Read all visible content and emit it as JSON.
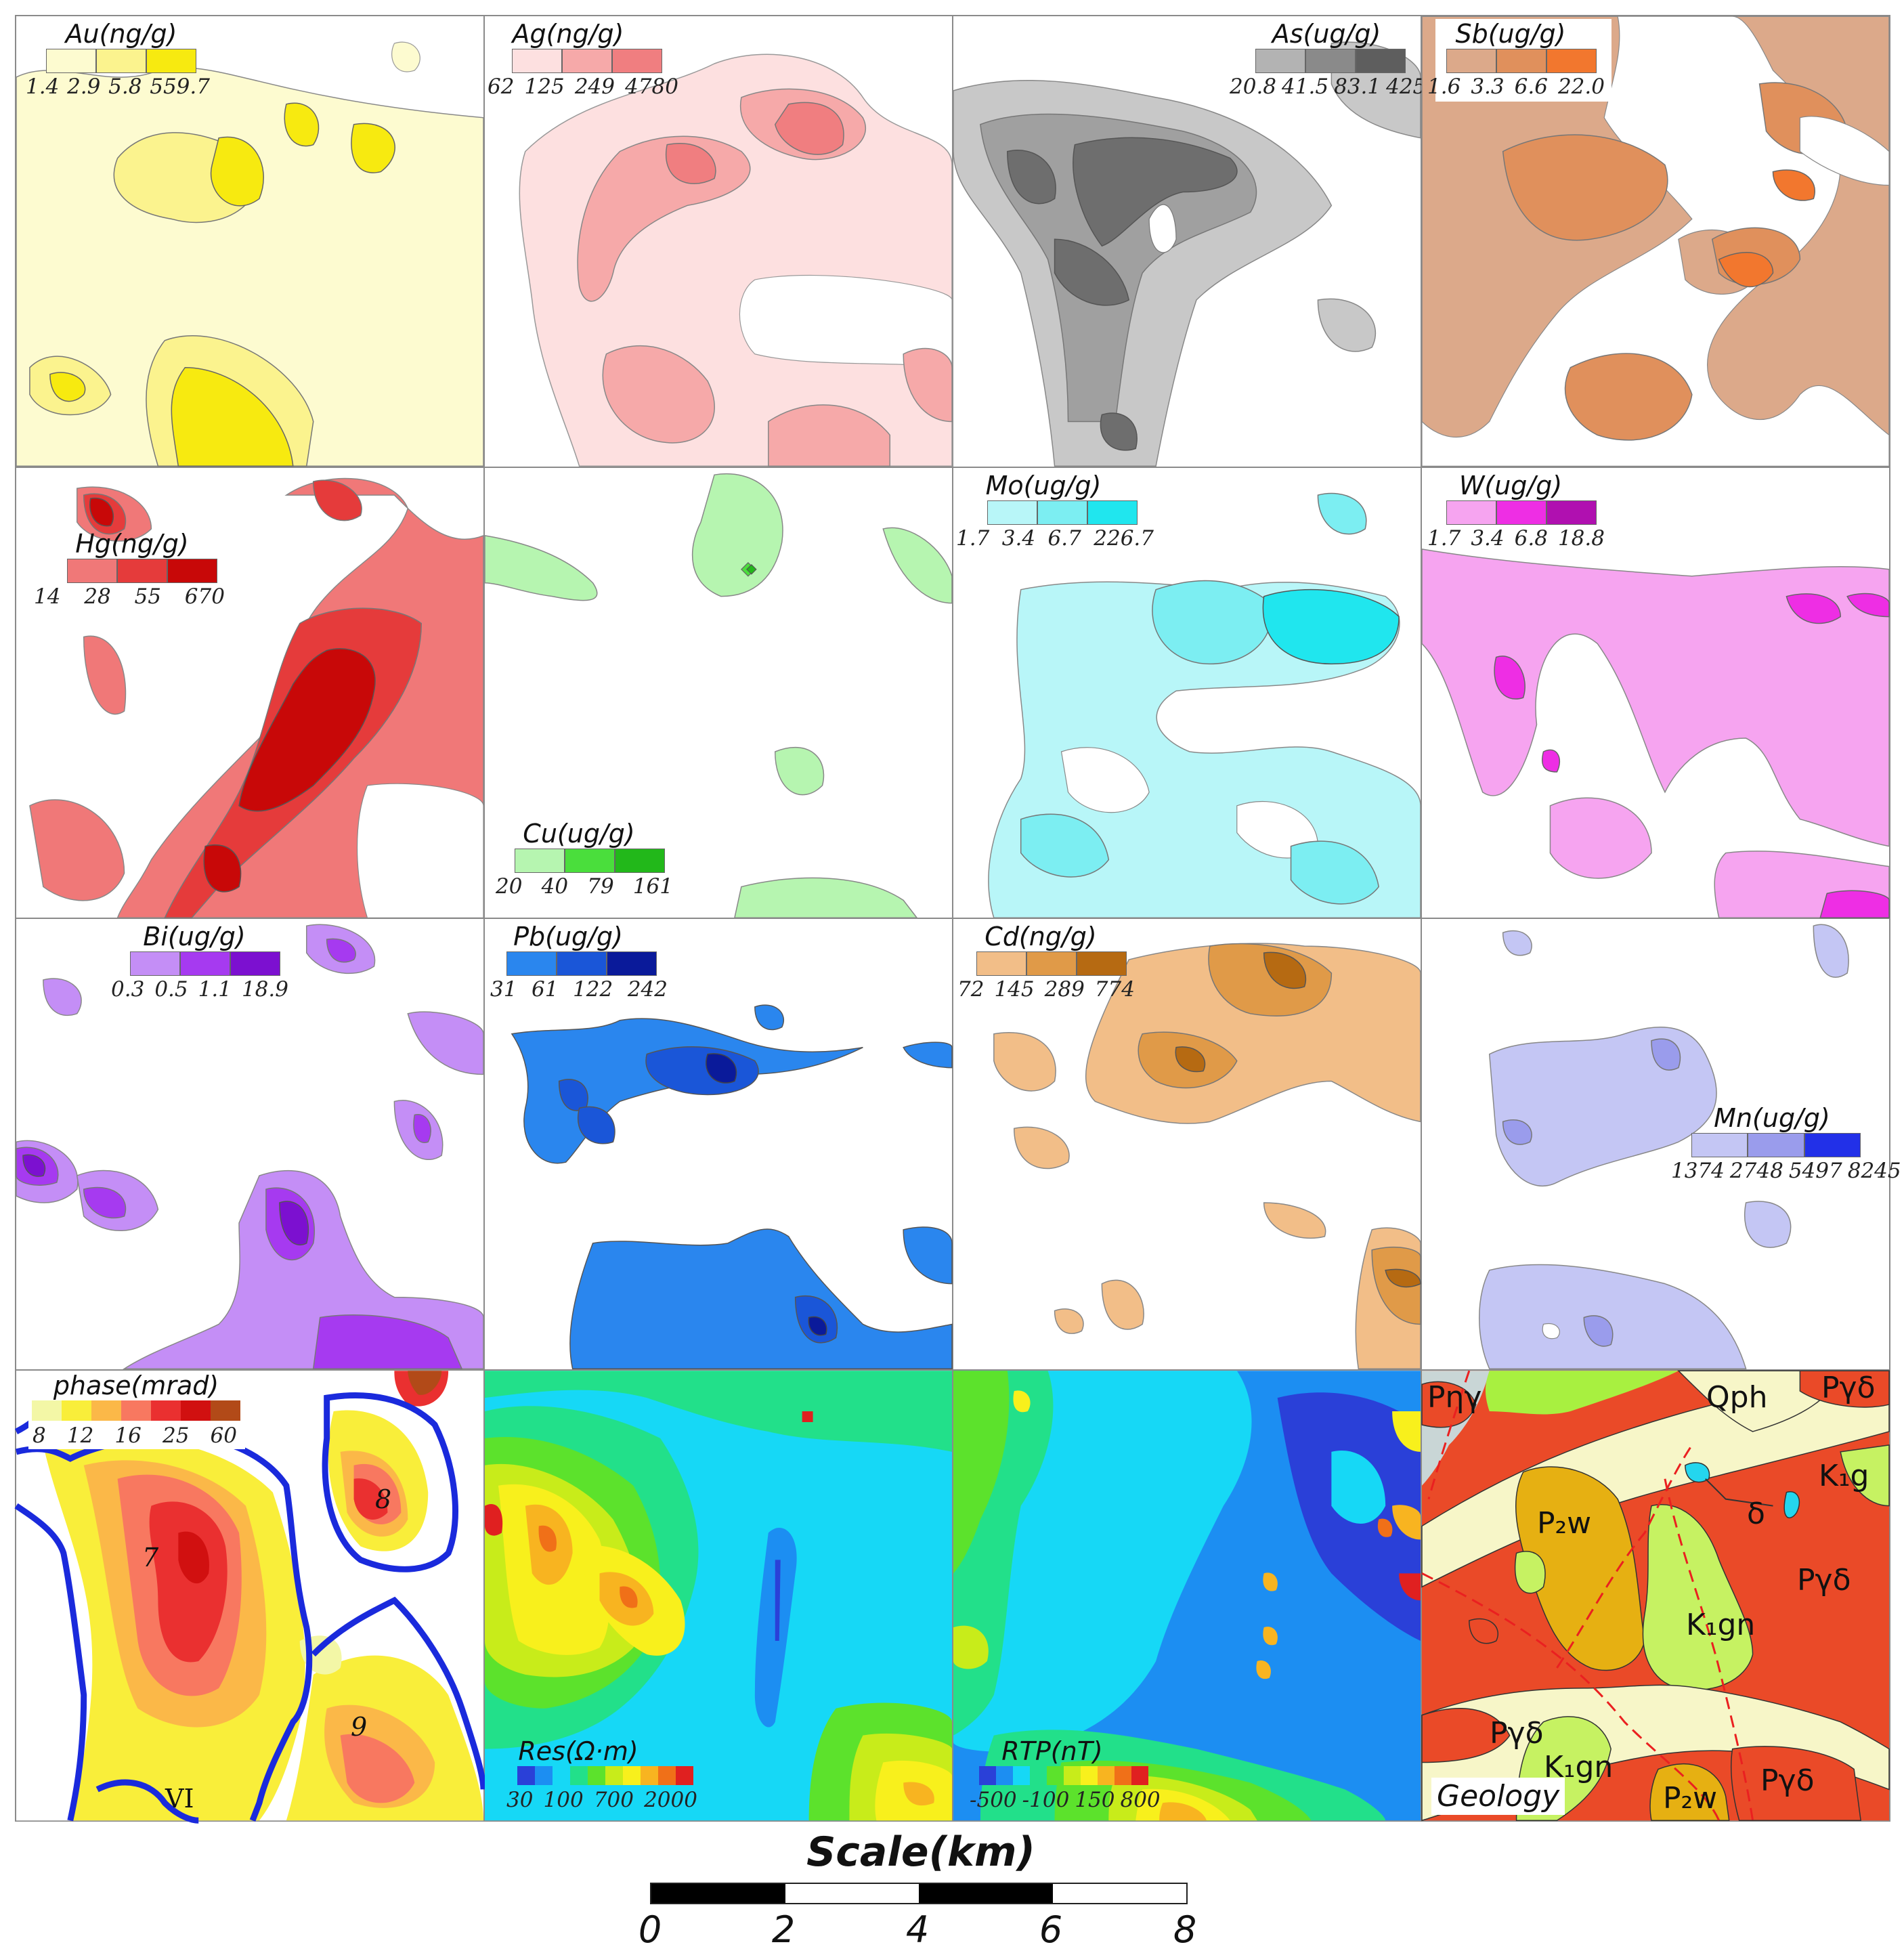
{
  "panels": [
    {
      "id": "au",
      "title": "Au(ng/g)",
      "ticks": [
        "1.4",
        "2.9",
        "5.8",
        "559.7"
      ],
      "colors": [
        "#fdfbd0",
        "#fbf38e",
        "#f7ea10"
      ],
      "continuous": false
    },
    {
      "id": "ag",
      "title": "Ag(ng/g)",
      "ticks": [
        "62",
        "125",
        "249",
        "4780"
      ],
      "colors": [
        "#fde0e0",
        "#f6a9a9",
        "#f07e80"
      ],
      "continuous": false
    },
    {
      "id": "as",
      "title": "As(ug/g)",
      "ticks": [
        "20.8",
        "41.5",
        "83.1",
        "425"
      ],
      "colors": [
        "#b3b3b3",
        "#8a8a8a",
        "#5e5e5e"
      ],
      "continuous": false
    },
    {
      "id": "sb",
      "title": "Sb(ug/g)",
      "ticks": [
        "1.6",
        "3.3",
        "6.6",
        "22.0"
      ],
      "colors": [
        "#dca98a",
        "#e0905c",
        "#f2772e"
      ],
      "continuous": false
    },
    {
      "id": "hg",
      "title": "Hg(ng/g)",
      "ticks": [
        "14",
        "28",
        "55",
        "670"
      ],
      "colors": [
        "#f07878",
        "#e53b3b",
        "#c80808"
      ],
      "continuous": false
    },
    {
      "id": "cu",
      "title": "Cu(ug/g)",
      "ticks": [
        "20",
        "40",
        "79",
        "161"
      ],
      "colors": [
        "#b6f5b0",
        "#4ade3c",
        "#22b81a"
      ],
      "continuous": false
    },
    {
      "id": "mo",
      "title": "Mo(ug/g)",
      "ticks": [
        "1.7",
        "3.4",
        "6.7",
        "226.7"
      ],
      "colors": [
        "#b8f6f8",
        "#7ceef2",
        "#20e6ee"
      ],
      "continuous": false
    },
    {
      "id": "w",
      "title": "W(ug/g)",
      "ticks": [
        "1.7",
        "3.4",
        "6.8",
        "18.8"
      ],
      "colors": [
        "#f6a4f0",
        "#ee2ee4",
        "#b010b0"
      ],
      "continuous": false
    },
    {
      "id": "bi",
      "title": "Bi(ug/g)",
      "ticks": [
        "0.3",
        "0.5",
        "1.1",
        "18.9"
      ],
      "colors": [
        "#c48ef6",
        "#a63af0",
        "#7c10d0"
      ],
      "continuous": false
    },
    {
      "id": "pb",
      "title": "Pb(ug/g)",
      "ticks": [
        "31",
        "61",
        "122",
        "242"
      ],
      "colors": [
        "#2a86ee",
        "#1a56d8",
        "#0a1a9a"
      ],
      "continuous": false
    },
    {
      "id": "cd",
      "title": "Cd(ng/g)",
      "ticks": [
        "72",
        "145",
        "289",
        "774"
      ],
      "colors": [
        "#f2be88",
        "#e09a48",
        "#b66a12"
      ],
      "continuous": false
    },
    {
      "id": "mn",
      "title": "Mn(ug/g)",
      "ticks": [
        "1374",
        "2748",
        "5497",
        "8245"
      ],
      "colors": [
        "#c4c6f4",
        "#9a9cec",
        "#2230e8"
      ],
      "continuous": false
    },
    {
      "id": "phase",
      "title": "phase(mrad)",
      "ticks": [
        "8",
        "12",
        "16",
        "25",
        "60"
      ],
      "colors": [
        "#f3f7a6",
        "#f9ee3a",
        "#fbb848",
        "#f87860",
        "#ea3030",
        "#d11010",
        "#b24a18"
      ],
      "continuous": true
    },
    {
      "id": "res",
      "title": "Res(Ω·m)",
      "ticks": [
        "30",
        "100",
        "700",
        "2000"
      ],
      "colors": [
        "#2a40d8",
        "#1c8ef2",
        "#16d8f6",
        "#22e08a",
        "#5ce22c",
        "#c8ec1a",
        "#f8f01c",
        "#f8b420",
        "#f07018",
        "#e02020"
      ],
      "continuous": true
    },
    {
      "id": "rtp",
      "title": "RTP(nT)",
      "ticks": [
        "-500",
        "-100",
        "150",
        "800"
      ],
      "colors": [
        "#2a40d8",
        "#1c8ef2",
        "#16d8f6",
        "#22e08a",
        "#5ce22c",
        "#c8ec1a",
        "#f8f01c",
        "#f8b420",
        "#f07018",
        "#e02020"
      ],
      "continuous": true
    },
    {
      "id": "geo",
      "title": "Geology",
      "ticks": [],
      "colors": [
        "#ea4a28",
        "#f7f6c8",
        "#e6b012",
        "#c6f262",
        "#24d6ee",
        "#a8f040",
        "#c9d6d6"
      ],
      "continuous": false
    }
  ],
  "phase_labels": {
    "a": "7",
    "b": "8",
    "c": "9",
    "d": "VI"
  },
  "geology_labels": {
    "pny": "Pηγ",
    "qph": "Qph",
    "pgd1": "Pγδ",
    "k1g": "K₁g",
    "delta": "δ",
    "p2w1": "P₂w",
    "pgd2": "Pγδ",
    "k1gn1": "K₁gn",
    "pgd3": "Pγδ",
    "k1gn2": "K₁gn",
    "p2w2": "P₂w",
    "pgd4": "Pγδ"
  },
  "scale": {
    "title": "Scale(km)",
    "ticks": [
      "0",
      "2",
      "4",
      "6",
      "8"
    ],
    "colors": [
      "#000000",
      "#ffffff"
    ]
  }
}
